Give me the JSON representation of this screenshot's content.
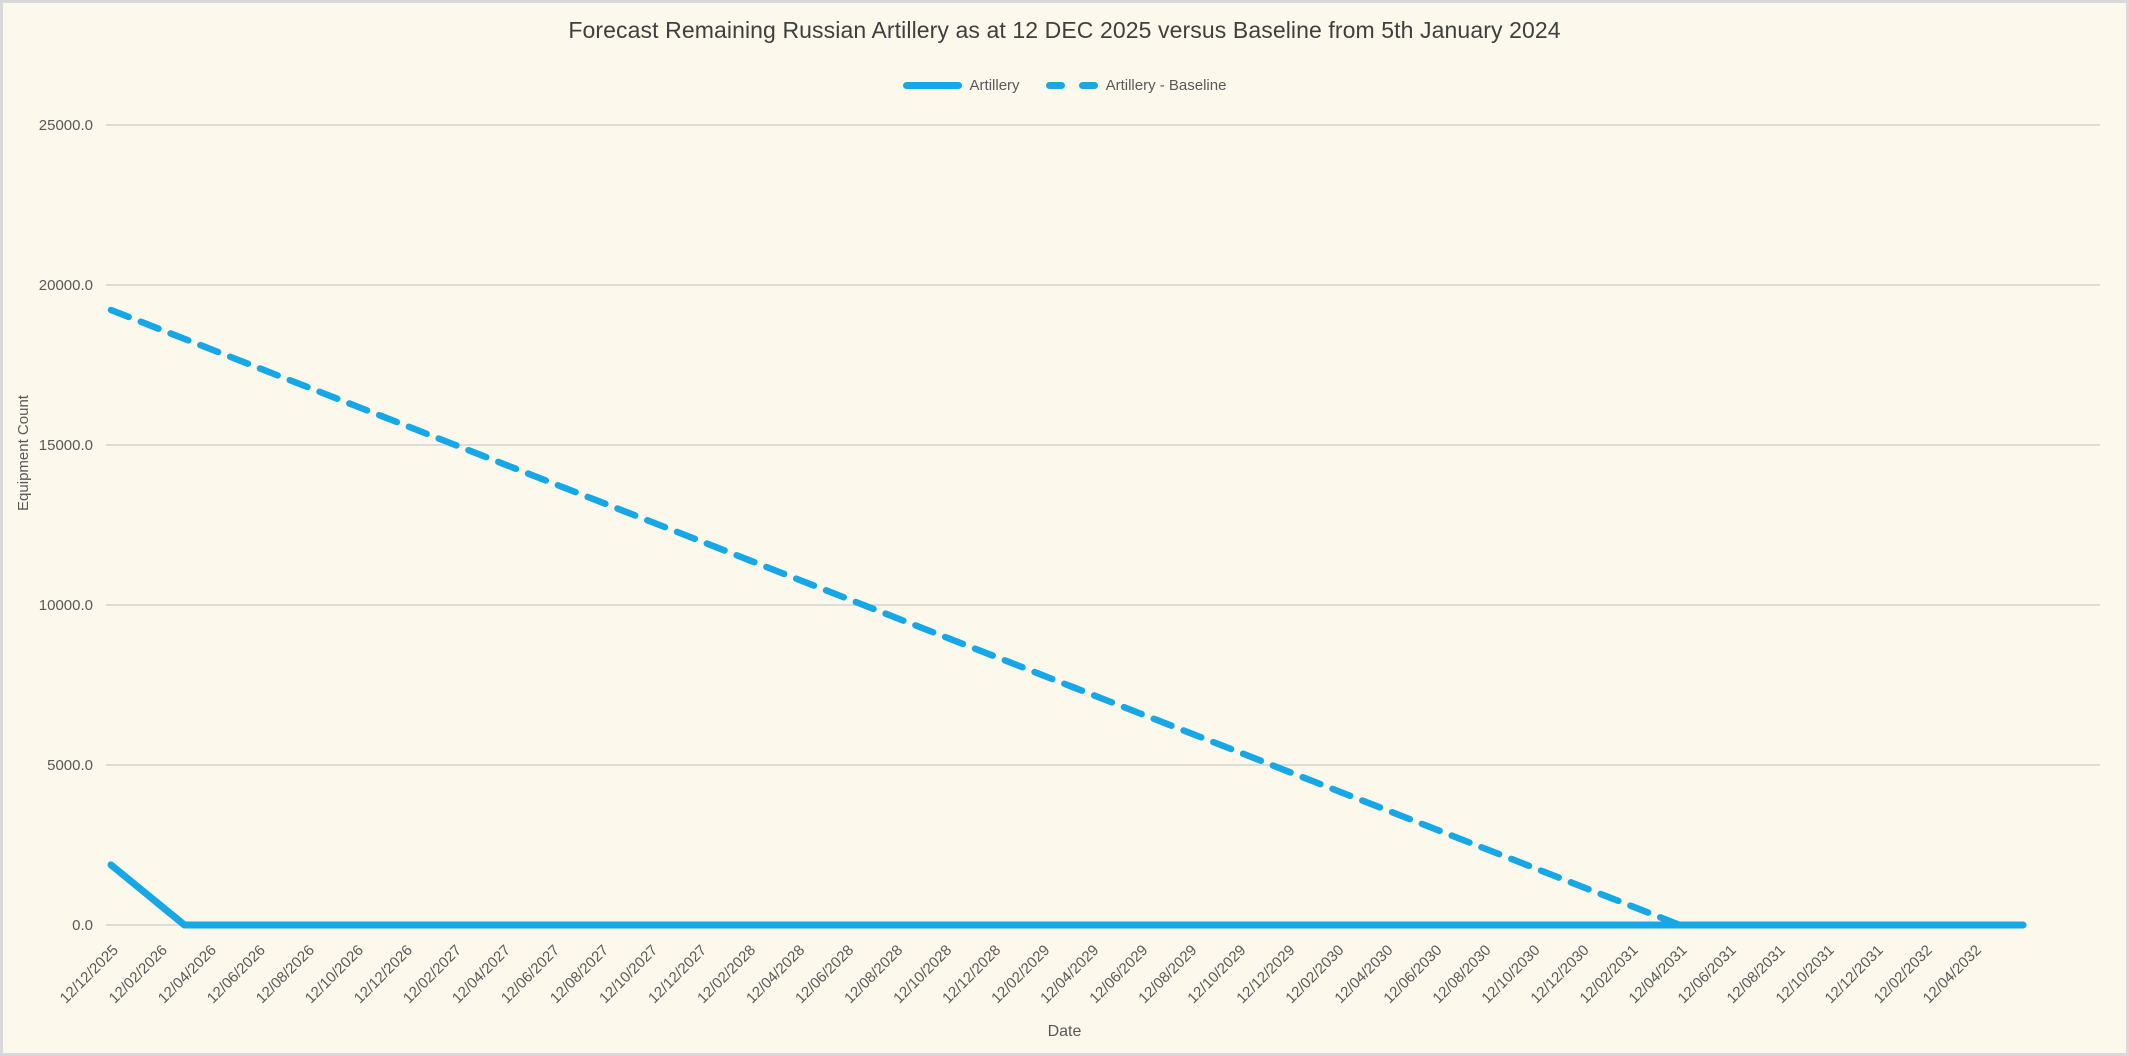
{
  "title": "Forecast Remaining Russian Artillery as at 12 DEC 2025 versus Baseline from 5th January 2024",
  "legend": {
    "artillery_label": "Artillery",
    "baseline_label": "Artillery - Baseline"
  },
  "colors": {
    "series_line": "#16A8E6",
    "background": "#FDF8EC",
    "window_border": "#D9D9D9",
    "gridline": "#DFDCD6",
    "title_text": "#3F3F3F",
    "axis_text": "#595959"
  },
  "chart_data": {
    "type": "line",
    "title": "Forecast Remaining Russian Artillery as at 12 DEC 2025 versus Baseline from 5th January 2024",
    "xlabel": "Date",
    "ylabel": "Equipment Count",
    "ylim": [
      0,
      25000
    ],
    "grid": "horizontal",
    "legend_position": "top-center",
    "y_ticks": [
      25000,
      20000,
      15000,
      10000,
      5000,
      0
    ],
    "y_tick_labels": [
      "25000.0",
      "20000.0",
      "15000.0",
      "10000.0",
      "5000.0",
      "0.0"
    ],
    "x_tick_step": 2,
    "x_tick_labels": [
      "12/12/2025",
      "12/02/2026",
      "12/04/2026",
      "12/06/2026",
      "12/08/2026",
      "12/10/2026",
      "12/12/2026",
      "12/02/2027",
      "12/04/2027",
      "12/06/2027",
      "12/08/2027",
      "12/10/2027",
      "12/12/2027",
      "12/02/2028",
      "12/04/2028",
      "12/06/2028",
      "12/08/2028",
      "12/10/2028",
      "12/12/2028",
      "12/02/2029",
      "12/04/2029",
      "12/06/2029",
      "12/08/2029",
      "12/10/2029",
      "12/12/2029",
      "12/02/2030",
      "12/04/2030",
      "12/06/2030",
      "12/08/2030",
      "12/10/2030",
      "12/12/2030",
      "12/02/2031",
      "12/04/2031",
      "12/06/2031",
      "12/08/2031",
      "12/10/2031",
      "12/12/2031",
      "12/02/2032",
      "12/04/2032"
    ],
    "categories": [
      "12/12/2025",
      "12/01/2026",
      "12/02/2026",
      "12/03/2026",
      "12/04/2026",
      "12/05/2026",
      "12/06/2026",
      "12/07/2026",
      "12/08/2026",
      "12/09/2026",
      "12/10/2026",
      "12/11/2026",
      "12/12/2026",
      "12/01/2027",
      "12/02/2027",
      "12/03/2027",
      "12/04/2027",
      "12/05/2027",
      "12/06/2027",
      "12/07/2027",
      "12/08/2027",
      "12/09/2027",
      "12/10/2027",
      "12/11/2027",
      "12/12/2027",
      "12/01/2028",
      "12/02/2028",
      "12/03/2028",
      "12/04/2028",
      "12/05/2028",
      "12/06/2028",
      "12/07/2028",
      "12/08/2028",
      "12/09/2028",
      "12/10/2028",
      "12/11/2028",
      "12/12/2028",
      "12/01/2029",
      "12/02/2029",
      "12/03/2029",
      "12/04/2029",
      "12/05/2029",
      "12/06/2029",
      "12/07/2029",
      "12/08/2029",
      "12/09/2029",
      "12/10/2029",
      "12/11/2029",
      "12/12/2029",
      "12/01/2030",
      "12/02/2030",
      "12/03/2030",
      "12/04/2030",
      "12/05/2030",
      "12/06/2030",
      "12/07/2030",
      "12/08/2030",
      "12/09/2030",
      "12/10/2030",
      "12/11/2030",
      "12/12/2030",
      "12/01/2031",
      "12/02/2031",
      "12/03/2031",
      "12/04/2031",
      "12/05/2031",
      "12/06/2031",
      "12/07/2031",
      "12/08/2031",
      "12/09/2031",
      "12/10/2031",
      "12/11/2031",
      "12/12/2031",
      "12/01/2032",
      "12/02/2032",
      "12/03/2032",
      "12/04/2032",
      "12/05/2032",
      "12/06/2032"
    ],
    "series": [
      {
        "name": "Artillery - Baseline",
        "style": "dashed",
        "color": "#16A8E6",
        "values": [
          19218,
          18918,
          18617,
          18317,
          18017,
          17717,
          17416,
          17116,
          16816,
          16515,
          16215,
          15915,
          15615,
          15314,
          15014,
          14714,
          14414,
          14113,
          13813,
          13513,
          13212,
          12912,
          12612,
          12312,
          12011,
          11711,
          11411,
          11110,
          10810,
          10510,
          10210,
          9909,
          9609,
          9309,
          9008,
          8708,
          8408,
          8108,
          7807,
          7507,
          7207,
          6906,
          6606,
          6306,
          6006,
          5705,
          5405,
          5105,
          4804,
          4504,
          4204,
          3904,
          3603,
          3303,
          3003,
          2702,
          2402,
          2102,
          1802,
          1501,
          1201,
          901,
          601,
          300,
          0,
          0,
          0,
          0,
          0,
          0,
          0,
          0,
          0,
          0,
          0,
          0,
          0,
          0,
          0
        ]
      },
      {
        "name": "Artillery",
        "style": "solid",
        "color": "#16A8E6",
        "values": [
          1878,
          1252,
          626,
          0,
          0,
          0,
          0,
          0,
          0,
          0,
          0,
          0,
          0,
          0,
          0,
          0,
          0,
          0,
          0,
          0,
          0,
          0,
          0,
          0,
          0,
          0,
          0,
          0,
          0,
          0,
          0,
          0,
          0,
          0,
          0,
          0,
          0,
          0,
          0,
          0,
          0,
          0,
          0,
          0,
          0,
          0,
          0,
          0,
          0,
          0,
          0,
          0,
          0,
          0,
          0,
          0,
          0,
          0,
          0,
          0,
          0,
          0,
          0,
          0,
          0,
          0,
          0,
          0,
          0,
          0,
          0,
          0,
          0,
          0,
          0,
          0,
          0,
          0,
          0
        ]
      }
    ]
  }
}
